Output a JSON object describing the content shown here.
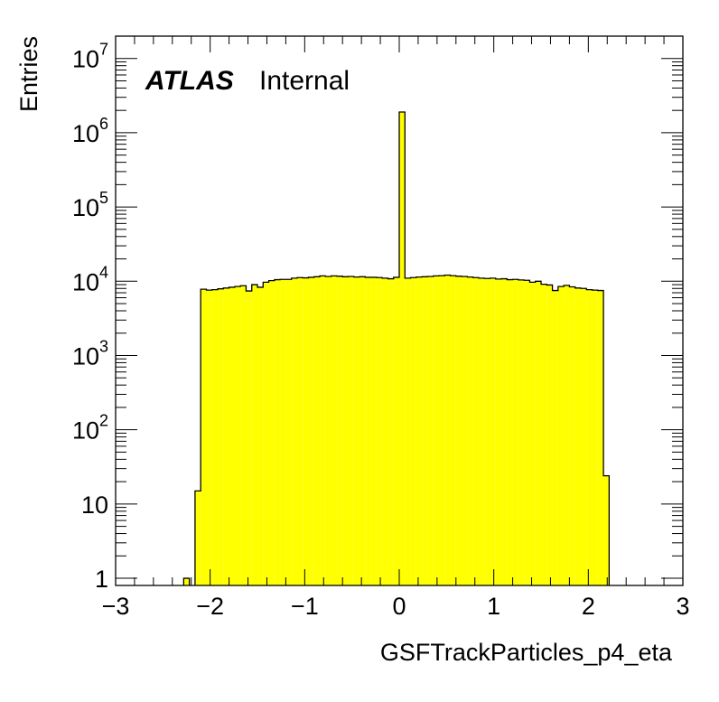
{
  "chart_data": {
    "type": "bar",
    "histogram": true,
    "xlabel": "GSFTrackParticles_p4_eta",
    "ylabel": "Entries",
    "xlim": [
      -3,
      3
    ],
    "ylim": [
      0.8,
      20000000
    ],
    "log_y": true,
    "grid": false,
    "bin_width": 0.06,
    "xticks": [
      "−3",
      "−2",
      "−1",
      "0",
      "1",
      "2",
      "3"
    ],
    "xtick_values": [
      -3,
      -2,
      -1,
      0,
      1,
      2,
      3
    ],
    "yticks": [
      {
        "value": 1,
        "base": "1",
        "exp": ""
      },
      {
        "value": 10,
        "base": "10",
        "exp": ""
      },
      {
        "value": 100,
        "base": "10",
        "exp": "2"
      },
      {
        "value": 1000,
        "base": "10",
        "exp": "3"
      },
      {
        "value": 10000,
        "base": "10",
        "exp": "4"
      },
      {
        "value": 100000,
        "base": "10",
        "exp": "5"
      },
      {
        "value": 1000000,
        "base": "10",
        "exp": "6"
      },
      {
        "value": 10000000,
        "base": "10",
        "exp": "7"
      }
    ],
    "annotation": {
      "bold": "ATLAS",
      "normal": "Internal"
    },
    "fill_color": "#ffff00",
    "line_color": "#000000",
    "bins": [
      {
        "x": -2.28,
        "y": 1
      },
      {
        "x": -2.16,
        "y": 15
      },
      {
        "x": -2.1,
        "y": 7800
      },
      {
        "x": -2.04,
        "y": 7600
      },
      {
        "x": -1.98,
        "y": 7700
      },
      {
        "x": -1.92,
        "y": 7900
      },
      {
        "x": -1.86,
        "y": 8100
      },
      {
        "x": -1.8,
        "y": 8300
      },
      {
        "x": -1.74,
        "y": 8500
      },
      {
        "x": -1.68,
        "y": 8700
      },
      {
        "x": -1.62,
        "y": 7400
      },
      {
        "x": -1.56,
        "y": 9000
      },
      {
        "x": -1.5,
        "y": 8300
      },
      {
        "x": -1.44,
        "y": 9700
      },
      {
        "x": -1.38,
        "y": 10200
      },
      {
        "x": -1.32,
        "y": 10500
      },
      {
        "x": -1.26,
        "y": 10600
      },
      {
        "x": -1.2,
        "y": 10600
      },
      {
        "x": -1.14,
        "y": 11000
      },
      {
        "x": -1.08,
        "y": 11200
      },
      {
        "x": -1.02,
        "y": 11100
      },
      {
        "x": -0.96,
        "y": 11300
      },
      {
        "x": -0.9,
        "y": 11500
      },
      {
        "x": -0.84,
        "y": 11800
      },
      {
        "x": -0.78,
        "y": 11600
      },
      {
        "x": -0.72,
        "y": 11800
      },
      {
        "x": -0.66,
        "y": 11700
      },
      {
        "x": -0.6,
        "y": 11500
      },
      {
        "x": -0.54,
        "y": 11600
      },
      {
        "x": -0.48,
        "y": 11400
      },
      {
        "x": -0.42,
        "y": 11500
      },
      {
        "x": -0.36,
        "y": 11300
      },
      {
        "x": -0.3,
        "y": 11300
      },
      {
        "x": -0.24,
        "y": 11200
      },
      {
        "x": -0.18,
        "y": 11000
      },
      {
        "x": -0.12,
        "y": 10800
      },
      {
        "x": -0.06,
        "y": 11300
      },
      {
        "x": 0.0,
        "y": 1900000
      },
      {
        "x": 0.06,
        "y": 11000
      },
      {
        "x": 0.12,
        "y": 11200
      },
      {
        "x": 0.18,
        "y": 11400
      },
      {
        "x": 0.24,
        "y": 11500
      },
      {
        "x": 0.3,
        "y": 11600
      },
      {
        "x": 0.36,
        "y": 11800
      },
      {
        "x": 0.42,
        "y": 11900
      },
      {
        "x": 0.48,
        "y": 12100
      },
      {
        "x": 0.54,
        "y": 11900
      },
      {
        "x": 0.6,
        "y": 11700
      },
      {
        "x": 0.66,
        "y": 11600
      },
      {
        "x": 0.72,
        "y": 11400
      },
      {
        "x": 0.78,
        "y": 11200
      },
      {
        "x": 0.84,
        "y": 11000
      },
      {
        "x": 0.9,
        "y": 10900
      },
      {
        "x": 0.96,
        "y": 11000
      },
      {
        "x": 1.02,
        "y": 10700
      },
      {
        "x": 1.08,
        "y": 10800
      },
      {
        "x": 1.14,
        "y": 10500
      },
      {
        "x": 1.2,
        "y": 10600
      },
      {
        "x": 1.26,
        "y": 10400
      },
      {
        "x": 1.32,
        "y": 10300
      },
      {
        "x": 1.38,
        "y": 9700
      },
      {
        "x": 1.44,
        "y": 10000
      },
      {
        "x": 1.5,
        "y": 9100
      },
      {
        "x": 1.56,
        "y": 8900
      },
      {
        "x": 1.62,
        "y": 7500
      },
      {
        "x": 1.68,
        "y": 8500
      },
      {
        "x": 1.74,
        "y": 8800
      },
      {
        "x": 1.8,
        "y": 8400
      },
      {
        "x": 1.86,
        "y": 8100
      },
      {
        "x": 1.92,
        "y": 8000
      },
      {
        "x": 1.98,
        "y": 7700
      },
      {
        "x": 2.04,
        "y": 7600
      },
      {
        "x": 2.1,
        "y": 7500
      },
      {
        "x": 2.16,
        "y": 24
      }
    ]
  }
}
